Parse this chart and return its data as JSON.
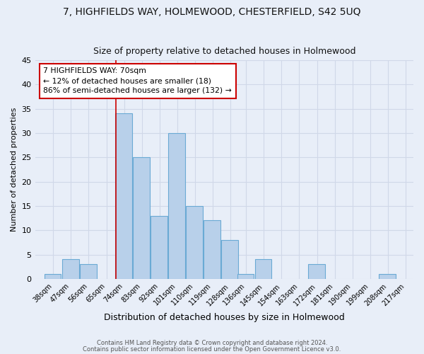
{
  "title": "7, HIGHFIELDS WAY, HOLMEWOOD, CHESTERFIELD, S42 5UQ",
  "subtitle": "Size of property relative to detached houses in Holmewood",
  "xlabel": "Distribution of detached houses by size in Holmewood",
  "ylabel": "Number of detached properties",
  "tick_labels": [
    "38sqm",
    "47sqm",
    "56sqm",
    "65sqm",
    "74sqm",
    "83sqm",
    "92sqm",
    "101sqm",
    "110sqm",
    "119sqm",
    "128sqm",
    "136sqm",
    "145sqm",
    "154sqm",
    "163sqm",
    "172sqm",
    "181sqm",
    "190sqm",
    "199sqm",
    "208sqm",
    "217sqm"
  ],
  "tick_positions": [
    38,
    47,
    56,
    65,
    74,
    83,
    92,
    101,
    110,
    119,
    128,
    136,
    145,
    154,
    163,
    172,
    181,
    190,
    199,
    208,
    217
  ],
  "bar_lefts": [
    33.5,
    42.5,
    51.5,
    60.5,
    69.5,
    78.5,
    87.5,
    96.5,
    105.5,
    114.5,
    123.5,
    131.5,
    140.5,
    149.5,
    158.5,
    167.5,
    176.5,
    185.5,
    194.5,
    203.5,
    212.5
  ],
  "bar_width": 8.5,
  "counts": [
    1,
    4,
    3,
    0,
    34,
    25,
    13,
    30,
    15,
    12,
    8,
    1,
    4,
    0,
    0,
    3,
    0,
    0,
    0,
    1,
    0
  ],
  "bar_color": "#b8d0ea",
  "bar_edge_color": "#6aaad4",
  "annotation_title": "7 HIGHFIELDS WAY: 70sqm",
  "annotation_line1": "← 12% of detached houses are smaller (18)",
  "annotation_line2": "86% of semi-detached houses are larger (132) →",
  "annotation_box_color": "#ffffff",
  "annotation_box_edge": "#cc0000",
  "vline_x": 70,
  "vline_color": "#cc0000",
  "ylim": [
    0,
    45
  ],
  "yticks": [
    0,
    5,
    10,
    15,
    20,
    25,
    30,
    35,
    40,
    45
  ],
  "xlim_left": 29,
  "xlim_right": 221,
  "footer1": "Contains HM Land Registry data © Crown copyright and database right 2024.",
  "footer2": "Contains public sector information licensed under the Open Government Licence v3.0.",
  "bg_color": "#e8eef8",
  "grid_color": "#d0d8e8",
  "title_fontsize": 10,
  "subtitle_fontsize": 9,
  "annot_fontsize": 7.8
}
